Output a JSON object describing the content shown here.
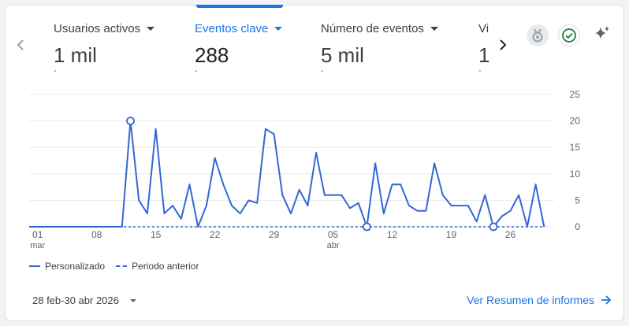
{
  "metrics": [
    {
      "label": "Usuarios activos",
      "value": "1 mil",
      "delta": "-",
      "active": false
    },
    {
      "label": "Eventos clave",
      "value": "288",
      "delta": "-",
      "active": true
    },
    {
      "label": "Número de eventos",
      "value": "5 mil",
      "delta": "-",
      "active": false
    },
    {
      "label": "Vi",
      "value": "1",
      "delta": "-",
      "active": false
    }
  ],
  "icons": {
    "prev": "chevron-left-icon",
    "next": "chevron-right-icon",
    "badge": "medal-icon",
    "check": "check-circle-icon",
    "sparkle": "sparkle-icon"
  },
  "colors": {
    "accent": "#1a73e8",
    "series": "#3367d6",
    "success": "#188038"
  },
  "chart_data": {
    "type": "line",
    "x_ticks": [
      {
        "day": 1,
        "label": "01",
        "sub": "mar"
      },
      {
        "day": 8,
        "label": "08",
        "sub": ""
      },
      {
        "day": 15,
        "label": "15",
        "sub": ""
      },
      {
        "day": 22,
        "label": "22",
        "sub": ""
      },
      {
        "day": 29,
        "label": "29",
        "sub": ""
      },
      {
        "day": 36,
        "label": "05",
        "sub": "abr"
      },
      {
        "day": 43,
        "label": "12",
        "sub": ""
      },
      {
        "day": 50,
        "label": "19",
        "sub": ""
      },
      {
        "day": 57,
        "label": "26",
        "sub": ""
      }
    ],
    "y_ticks": [
      0,
      5,
      10,
      15,
      20,
      25
    ],
    "ylim": [
      0,
      25
    ],
    "xlim": [
      0,
      62
    ],
    "series": [
      {
        "name": "Personalizado",
        "style": "solid",
        "values": [
          0,
          0,
          0,
          0,
          0,
          0,
          0,
          0,
          0,
          0,
          0,
          0,
          20,
          5,
          2.5,
          18.5,
          2.5,
          4,
          1.5,
          8,
          0,
          4,
          13,
          8,
          4,
          2.5,
          5,
          4.5,
          18.5,
          17.5,
          6,
          2.5,
          7,
          4,
          14,
          6,
          6,
          6,
          3.5,
          4.5,
          0,
          12,
          2.5,
          8,
          8,
          4,
          3,
          3,
          12,
          6,
          4,
          4,
          4,
          1,
          6,
          0,
          2,
          3,
          6,
          0,
          8,
          0
        ]
      },
      {
        "name": "Periodo anterior",
        "style": "dashed",
        "values": [
          0,
          0,
          0,
          0,
          0,
          0,
          0,
          0,
          0,
          0,
          0,
          0,
          0,
          0,
          0,
          0,
          0,
          0,
          0,
          0,
          0,
          0,
          0,
          0,
          0,
          0,
          0,
          0,
          0,
          0,
          0,
          0,
          0,
          0,
          0,
          0,
          0,
          0,
          0,
          0,
          0,
          0,
          0,
          0,
          0,
          0,
          0,
          0,
          0,
          0,
          0,
          0,
          0,
          0,
          0,
          0,
          0,
          0,
          0,
          0,
          0,
          0
        ]
      }
    ],
    "markers": [
      12,
      40,
      55
    ],
    "grid": true
  },
  "legend": {
    "current": "Personalizado",
    "previous": "Periodo anterior"
  },
  "footer": {
    "date_range": "28 feb-30 abr 2026",
    "link": "Ver Resumen de informes"
  }
}
